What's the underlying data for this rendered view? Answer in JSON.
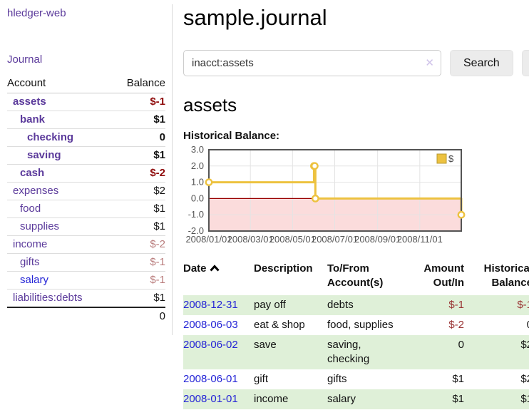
{
  "sidebar": {
    "app_title": "hledger-web",
    "journal_label": "Journal",
    "table": {
      "account_header": "Account",
      "balance_header": "Balance",
      "accounts": [
        {
          "name": "assets",
          "balance": "$-1"
        },
        {
          "name": "bank",
          "balance": "$1"
        },
        {
          "name": "checking",
          "balance": "0"
        },
        {
          "name": "saving",
          "balance": "$1"
        },
        {
          "name": "cash",
          "balance": "$-2"
        },
        {
          "name": "expenses",
          "balance": "$2"
        },
        {
          "name": "food",
          "balance": "$1"
        },
        {
          "name": "supplies",
          "balance": "$1"
        },
        {
          "name": "income",
          "balance": "$-2"
        },
        {
          "name": "gifts",
          "balance": "$-1"
        },
        {
          "name": "salary",
          "balance": "$-1"
        },
        {
          "name": "liabilities:debts",
          "balance": "$1"
        }
      ],
      "total": "0"
    }
  },
  "main": {
    "title": "sample.journal",
    "search": {
      "value": "inacct:assets",
      "clear_icon": "✕",
      "search_button": "Search",
      "help_button": "?"
    },
    "account_heading": "assets",
    "chart_label": "Historical Balance:"
  },
  "chart_data": {
    "type": "line",
    "style": "steps",
    "title": "Historical Balance:",
    "ylim": [
      -2,
      3
    ],
    "yticks": [
      3,
      2,
      1,
      0,
      -1,
      -2
    ],
    "xticks": [
      "2008/01/01",
      "2008/03/01",
      "2008/05/01",
      "2008/07/01",
      "2008/09/01",
      "2008/11/01"
    ],
    "xrange": [
      "2008-01-01",
      "2008-12-31"
    ],
    "grid": true,
    "legend_position": "top-right",
    "series": [
      {
        "name": "$",
        "color": "#EDC240",
        "points": [
          [
            "2008-01-01",
            1
          ],
          [
            "2008-06-01",
            2
          ],
          [
            "2008-06-02",
            2
          ],
          [
            "2008-06-03",
            0
          ],
          [
            "2008-12-31",
            -1
          ]
        ]
      }
    ],
    "negative_zone_color": "#fbdcdc",
    "zero_line_color": "#990000"
  },
  "register": {
    "headers": {
      "date": "Date",
      "description": "Description",
      "accounts": "To/From Account(s)",
      "amount": "Amount Out/In",
      "balance": "Historical Balance"
    },
    "rows": [
      {
        "date": "2008-12-31",
        "description": "pay off",
        "accounts": "debts",
        "amount": "$-1",
        "balance": "$-1"
      },
      {
        "date": "2008-06-03",
        "description": "eat & shop",
        "accounts": "food, supplies",
        "amount": "$-2",
        "balance": "0"
      },
      {
        "date": "2008-06-02",
        "description": "save",
        "accounts": "saving, checking",
        "amount": "0",
        "balance": "$2"
      },
      {
        "date": "2008-06-01",
        "description": "gift",
        "accounts": "gifts",
        "amount": "$1",
        "balance": "$2"
      },
      {
        "date": "2008-01-01",
        "description": "income",
        "accounts": "salary",
        "amount": "$1",
        "balance": "$1"
      }
    ]
  },
  "colors": {
    "link_purple": "#5b3a9b",
    "link_blue": "#2424d6",
    "negative_bold_red": "#8f0b0b",
    "negative_muted_rose": "#b97c7c",
    "table_negative_red": "#993333",
    "row_green": "#dff0d8",
    "chart_line_yellow": "#EDC240",
    "chart_zero_line": "#990000",
    "chart_negative_zone": "#fbdcdc"
  }
}
